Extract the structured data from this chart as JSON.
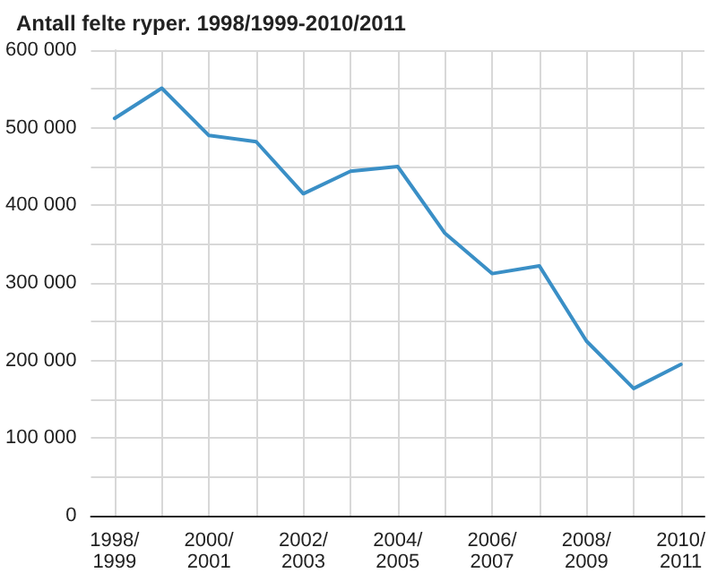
{
  "chart_data": {
    "type": "line",
    "title": "Antall felte ryper. 1998/1999-2010/2011",
    "categories": [
      "1998/1999",
      null,
      "2000/2001",
      null,
      "2002/2003",
      null,
      "2004/2005",
      null,
      "2006/2007",
      null,
      "2008/2009",
      null,
      "2010/2011"
    ],
    "series": [
      {
        "color": "#3a8fc6",
        "values": [
          512000,
          551000,
          490000,
          482000,
          415000,
          444000,
          450000,
          364000,
          312000,
          322000,
          225000,
          164000,
          195000
        ]
      }
    ],
    "ylim": [
      0,
      600000
    ],
    "yticks": [
      {
        "value": 0,
        "label": "0"
      },
      {
        "value": 50000,
        "label": null
      },
      {
        "value": 100000,
        "label": "100 000"
      },
      {
        "value": 150000,
        "label": null
      },
      {
        "value": 200000,
        "label": "200 000"
      },
      {
        "value": 250000,
        "label": null
      },
      {
        "value": 300000,
        "label": "300 000"
      },
      {
        "value": 350000,
        "label": null
      },
      {
        "value": 400000,
        "label": "400 000"
      },
      {
        "value": 450000,
        "label": null
      },
      {
        "value": 500000,
        "label": "500 000"
      },
      {
        "value": 550000,
        "label": null
      },
      {
        "value": 600000,
        "label": "600 000"
      }
    ],
    "grid": true,
    "marker": "none",
    "line_style": "solid"
  }
}
